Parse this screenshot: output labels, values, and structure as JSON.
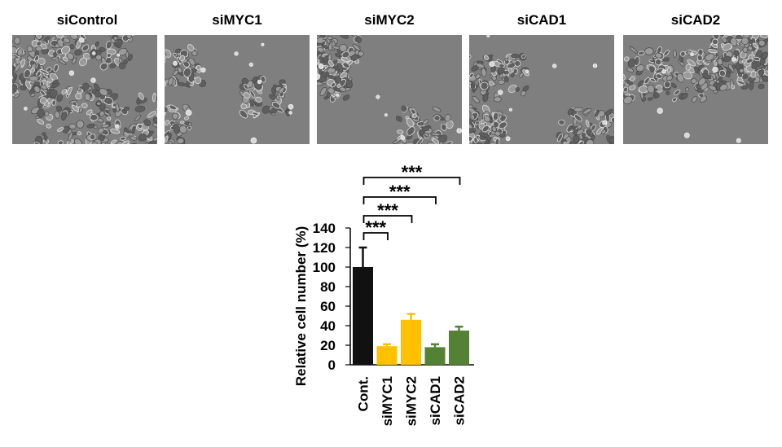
{
  "panels": [
    {
      "label": "siControl",
      "density": 0.95
    },
    {
      "label": "siMYC1",
      "density": 0.35
    },
    {
      "label": "siMYC2",
      "density": 0.5
    },
    {
      "label": "siCAD1",
      "density": 0.6
    },
    {
      "label": "siCAD2",
      "density": 0.7
    }
  ],
  "colors": {
    "micrograph_bg": "#7f7f7f",
    "control": "#111111",
    "myc": "#ffc000",
    "cad": "#548235"
  },
  "chart_data": {
    "type": "bar",
    "ylabel": "Relative cell number (%)",
    "ylim": [
      0,
      140
    ],
    "yticks": [
      0,
      20,
      40,
      60,
      80,
      100,
      120,
      140
    ],
    "grid": false,
    "categories": [
      "Cont.",
      "siMYC1",
      "siMYC2",
      "siCAD1",
      "siCAD2"
    ],
    "values": [
      100,
      19,
      46,
      18,
      35
    ],
    "errors": [
      20,
      2,
      6,
      3,
      4
    ],
    "bar_colors": [
      "#111111",
      "#ffc000",
      "#ffc000",
      "#548235",
      "#548235"
    ],
    "significance": [
      {
        "from": "Cont.",
        "to": "siMYC1",
        "label": "***"
      },
      {
        "from": "Cont.",
        "to": "siMYC2",
        "label": "***"
      },
      {
        "from": "Cont.",
        "to": "siCAD1",
        "label": "***"
      },
      {
        "from": "Cont.",
        "to": "siCAD2",
        "label": "***"
      }
    ]
  }
}
